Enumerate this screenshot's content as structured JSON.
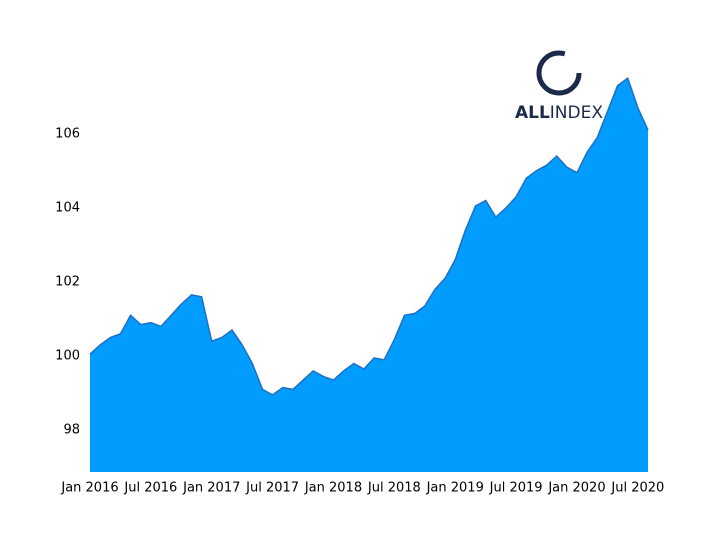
{
  "chart_data": {
    "type": "area",
    "logo": [
      "ALL",
      "INDEX"
    ],
    "x": [
      "2016-01",
      "2016-02",
      "2016-03",
      "2016-04",
      "2016-05",
      "2016-06",
      "2016-07",
      "2016-08",
      "2016-09",
      "2016-10",
      "2016-11",
      "2016-12",
      "2017-01",
      "2017-02",
      "2017-03",
      "2017-04",
      "2017-05",
      "2017-06",
      "2017-07",
      "2017-08",
      "2017-09",
      "2017-10",
      "2017-11",
      "2017-12",
      "2018-01",
      "2018-02",
      "2018-03",
      "2018-04",
      "2018-05",
      "2018-06",
      "2018-07",
      "2018-08",
      "2018-09",
      "2018-10",
      "2018-11",
      "2018-12",
      "2019-01",
      "2019-02",
      "2019-03",
      "2019-04",
      "2019-05",
      "2019-06",
      "2019-07",
      "2019-08",
      "2019-09",
      "2019-10",
      "2019-11",
      "2019-12",
      "2020-01",
      "2020-02",
      "2020-03",
      "2020-04",
      "2020-05",
      "2020-06",
      "2020-07",
      "2020-08"
    ],
    "values": [
      100.05,
      100.3,
      100.5,
      100.6,
      101.1,
      100.85,
      100.9,
      100.8,
      101.1,
      101.4,
      101.65,
      101.6,
      100.4,
      100.5,
      100.7,
      100.3,
      99.8,
      99.1,
      98.95,
      99.15,
      99.1,
      99.35,
      99.6,
      99.45,
      99.35,
      99.6,
      99.8,
      99.65,
      99.95,
      99.9,
      100.45,
      101.1,
      101.15,
      101.35,
      101.8,
      102.1,
      102.6,
      103.4,
      104.05,
      104.2,
      103.75,
      104.0,
      104.3,
      104.8,
      105.0,
      105.15,
      105.4,
      105.1,
      104.95,
      105.5,
      105.9,
      106.6,
      107.3,
      107.5,
      106.7,
      106.1
    ],
    "color": "#009dff",
    "line_color": "#1f6fc4",
    "xlim": [
      "2016-01",
      "2020-08"
    ],
    "xticks": [
      {
        "value": "2016-01",
        "label": "Jan 2016"
      },
      {
        "value": "2016-07",
        "label": "Jul 2016"
      },
      {
        "value": "2017-01",
        "label": "Jan 2017"
      },
      {
        "value": "2017-07",
        "label": "Jul 2017"
      },
      {
        "value": "2018-01",
        "label": "Jan 2018"
      },
      {
        "value": "2018-07",
        "label": "Jul 2018"
      },
      {
        "value": "2019-01",
        "label": "Jan 2019"
      },
      {
        "value": "2019-07",
        "label": "Jul 2019"
      },
      {
        "value": "2020-01",
        "label": "Jan 2020"
      },
      {
        "value": "2020-07",
        "label": "Jul 2020"
      }
    ],
    "ylim": [
      96.87,
      108.1
    ],
    "yticks": [
      98,
      100,
      102,
      104,
      106
    ],
    "grid": false
  }
}
